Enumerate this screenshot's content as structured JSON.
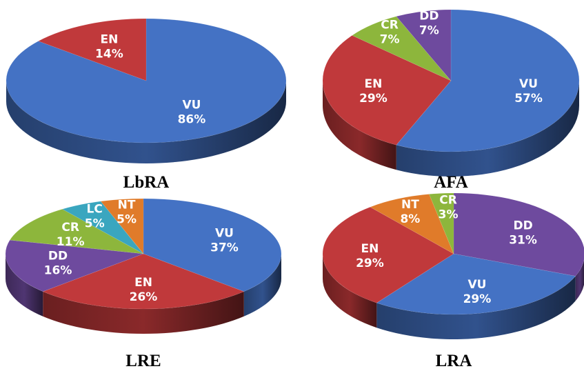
{
  "colors": {
    "VU": "#4472C4",
    "EN": "#C0393B",
    "CR": "#8DB63C",
    "DD": "#6E4A9E",
    "LC": "#3AA6BF",
    "NT": "#E07B2A"
  },
  "chart_data": [
    {
      "type": "pie",
      "title": "LbRA",
      "slices": [
        {
          "label": "VU",
          "value": 86,
          "display": "86%"
        },
        {
          "label": "EN",
          "value": 14,
          "display": "14%"
        }
      ]
    },
    {
      "type": "pie",
      "title": "AFA",
      "slices": [
        {
          "label": "VU",
          "value": 57,
          "display": "57%"
        },
        {
          "label": "EN",
          "value": 29,
          "display": "29%"
        },
        {
          "label": "CR",
          "value": 7,
          "display": "7%"
        },
        {
          "label": "DD",
          "value": 7,
          "display": "7%"
        }
      ]
    },
    {
      "type": "pie",
      "title": "LRE",
      "slices": [
        {
          "label": "VU",
          "value": 37,
          "display": "37%"
        },
        {
          "label": "EN",
          "value": 26,
          "display": "26%"
        },
        {
          "label": "DD",
          "value": 16,
          "display": "16%"
        },
        {
          "label": "CR",
          "value": 11,
          "display": "11%"
        },
        {
          "label": "LC",
          "value": 5,
          "display": "5%"
        },
        {
          "label": "NT",
          "value": 5,
          "display": "5%"
        }
      ]
    },
    {
      "type": "pie",
      "title": "LRA",
      "slices": [
        {
          "label": "DD",
          "value": 31,
          "display": "31%"
        },
        {
          "label": "VU",
          "value": 29,
          "display": "29%"
        },
        {
          "label": "EN",
          "value": 29,
          "display": "29%"
        },
        {
          "label": "NT",
          "value": 8,
          "display": "8%"
        },
        {
          "label": "CR",
          "value": 3,
          "display": "3%"
        }
      ]
    }
  ]
}
